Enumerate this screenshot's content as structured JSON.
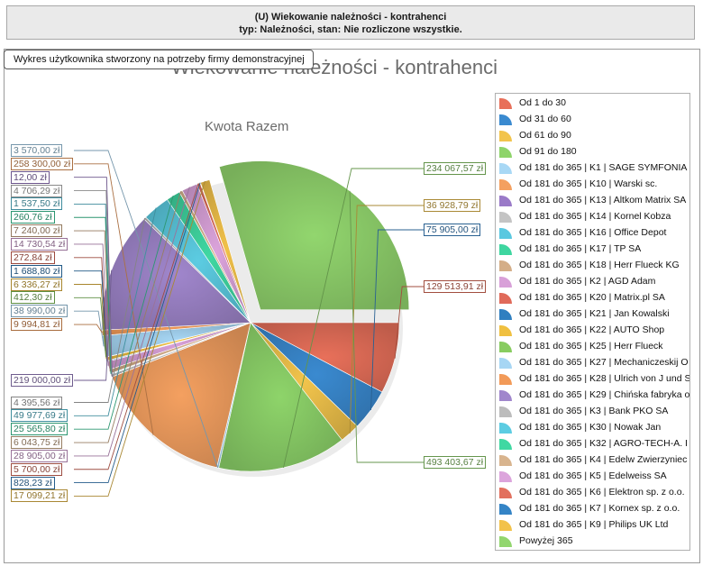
{
  "header": {
    "line1": "(U) Wiekowanie należności - kontrahenci",
    "line2": "typ: Należności, stan: Nie rozliczone wszystkie."
  },
  "note": "Wykres użytkownika stworzony na potrzeby firmy demonstracyjnej",
  "chart_data": {
    "type": "pie",
    "title": "Wiekowanie należności - kontrahenci",
    "subtitle": "Kwota Razem",
    "legend_position": "right",
    "slices": [
      {
        "name": "Od 1 do 30",
        "value": 129513.91,
        "label": "129 513,91 zł",
        "color": "#e8705a"
      },
      {
        "name": "Od 31 do 60",
        "value": 75905.0,
        "label": "75 905,00 zł",
        "color": "#3a8ad0"
      },
      {
        "name": "Od 61 do 90",
        "value": 36928.79,
        "label": "36 928,79 zł",
        "color": "#f2c44c"
      },
      {
        "name": "Od 91 do 180",
        "value": 234067.57,
        "label": "234 067,57 zł",
        "color": "#8ed46a"
      },
      {
        "name": "Od 181 do 365 | K1 | SAGE SYMFONIA",
        "value": 3570.0,
        "label": "3 570,00 zł",
        "color": "#a8d8f5"
      },
      {
        "name": "Od 181 do 365 | K10 | Warski sc.",
        "value": 258300.0,
        "label": "258 300,00 zł",
        "color": "#f4a060"
      },
      {
        "name": "Od 181 do 365 | K13 | Altkom Matrix SA",
        "value": 12.0,
        "label": "12,00 zł",
        "color": "#9a7ac8"
      },
      {
        "name": "Od 181 do 365 | K14 | Kornel Kobza",
        "value": 4706.29,
        "label": "4 706,29 zł",
        "color": "#c4c4c4"
      },
      {
        "name": "Od 181 do 365 | K16 | Office Depot",
        "value": 1537.5,
        "label": "1 537,50 zł",
        "color": "#5ac8e0"
      },
      {
        "name": "Od 181 do 365 | K17 | TP SA",
        "value": 260.76,
        "label": "260,76 zł",
        "color": "#3ed6a0"
      },
      {
        "name": "Od 181 do 365 | K18 | Herr Flueck KG",
        "value": 7240.0,
        "label": "7 240,00 zł",
        "color": "#d4ae88"
      },
      {
        "name": "Od 181 do 365 | K2 | AGD Adam",
        "value": 14730.54,
        "label": "14 730,54 zł",
        "color": "#d8a0d8"
      },
      {
        "name": "Od 181 do 365 | K20 | Matrix.pl SA",
        "value": 272.84,
        "label": "272,84 zł",
        "color": "#e06a5a"
      },
      {
        "name": "Od 181 do 365 | K21 | Jan Kowalski",
        "value": 1688.8,
        "label": "1 688,80 zł",
        "color": "#2f7fc0"
      },
      {
        "name": "Od 181 do 365 | K22 | AUTO Shop",
        "value": 6336.27,
        "label": "6 336,27 zł",
        "color": "#f0c040"
      },
      {
        "name": "Od 181 do 365 | K25 | Herr Flueck",
        "value": 412.3,
        "label": "412,30 zł",
        "color": "#88cc60"
      },
      {
        "name": "Od 181 do 365 | K27 | Mechaniczeskij O",
        "value": 38990.0,
        "label": "38 990,00 zł",
        "color": "#a6d6f4"
      },
      {
        "name": "Od 181 do 365 | K28 | Ulrich von J und S",
        "value": 9994.81,
        "label": "9 994,81 zł",
        "color": "#f29a58"
      },
      {
        "name": "Od 181 do 365 | K29 | Chińska fabryka",
        "value": 219000.0,
        "label": "219 000,00 zł",
        "color": "#a086cc"
      },
      {
        "name": "Od 181 do 365 | K3 | Bank PKO SA",
        "value": 4395.56,
        "label": "4 395,56 zł",
        "color": "#bcbcbc"
      },
      {
        "name": "Od 181 do 365 | K30 | Nowak Jan",
        "value": 49977.69,
        "label": "49 977,69 zł",
        "color": "#5ccce2"
      },
      {
        "name": "Od 181 do 365 | K32 | AGRO-TECH-A. I",
        "value": 25565.8,
        "label": "25 565,80 zł",
        "color": "#40d8a2"
      },
      {
        "name": "Od 181 do 365 | K4 | Edelw Zwierzyniec",
        "value": 6043.75,
        "label": "6 043,75 zł",
        "color": "#d8b48e"
      },
      {
        "name": "Od 181 do 365 | K5 | Edelweiss SA",
        "value": 28905.0,
        "label": "28 905,00 zł",
        "color": "#dca4dc"
      },
      {
        "name": "Od 181 do 365 | K6 | Elektron sp. z o.o.",
        "value": 5700.0,
        "label": "5 700,00 zł",
        "color": "#e2705e"
      },
      {
        "name": "Od 181 do 365 | K7 | Kornex sp. z o.o.",
        "value": 828.23,
        "label": "828,23 zł",
        "color": "#3484c6"
      },
      {
        "name": "Od 181 do 365 | K9 | Philips UK Ltd",
        "value": 17099.21,
        "label": "17 099,21 zł",
        "color": "#f2c24a"
      },
      {
        "name": "Powyżej 365",
        "value": 493403.67,
        "label": "493 403,67 zł",
        "color": "#92d66e"
      }
    ],
    "legend_labels": [
      "Od 1 do 30",
      "Od 31 do 60",
      "Od 61 do 90",
      "Od 91 do 180",
      "Od 181 do 365 | K1 | SAGE SYMFONIA",
      "Od 181 do 365 | K10 | Warski sc.",
      "Od 181 do 365 | K13 | Altkom Matrix SA",
      "Od 181 do 365 | K14 | Kornel Kobza",
      "Od 181 do 365 | K16 | Office Depot",
      "Od 181 do 365 | K17 | TP SA",
      "Od 181 do 365 | K18 | Herr Flueck KG",
      "Od 181 do 365 | K2 | AGD Adam",
      "Od 181 do 365 | K20 | Matrix.pl SA",
      "Od 181 do 365 | K21 | Jan Kowalski",
      "Od 181 do 365 | K22 | AUTO Shop",
      "Od 181 do 365 | K25 | Herr Flueck",
      "Od 181 do 365 | K27 | Mechaniczeskij O",
      "Od 181 do 365 | K28 | Ulrich von J und S",
      "Od 181 do 365 | K29 | Chińska fabryka o",
      "Od 181 do 365 | K3 | Bank PKO SA",
      "Od 181 do 365 | K30 | Nowak Jan",
      "Od 181 do 365 | K32 | AGRO-TECH-A. I",
      "Od 181 do 365 | K4 | Edelw Zwierzyniec",
      "Od 181 do 365 | K5 | Edelweiss SA",
      "Od 181 do 365 | K6 | Elektron sp. z o.o.",
      "Od 181 do 365 | K7 | Kornex sp. z o.o.",
      "Od 181 do 365 | K9 | Philips UK Ltd",
      "Powyżej 365"
    ]
  }
}
